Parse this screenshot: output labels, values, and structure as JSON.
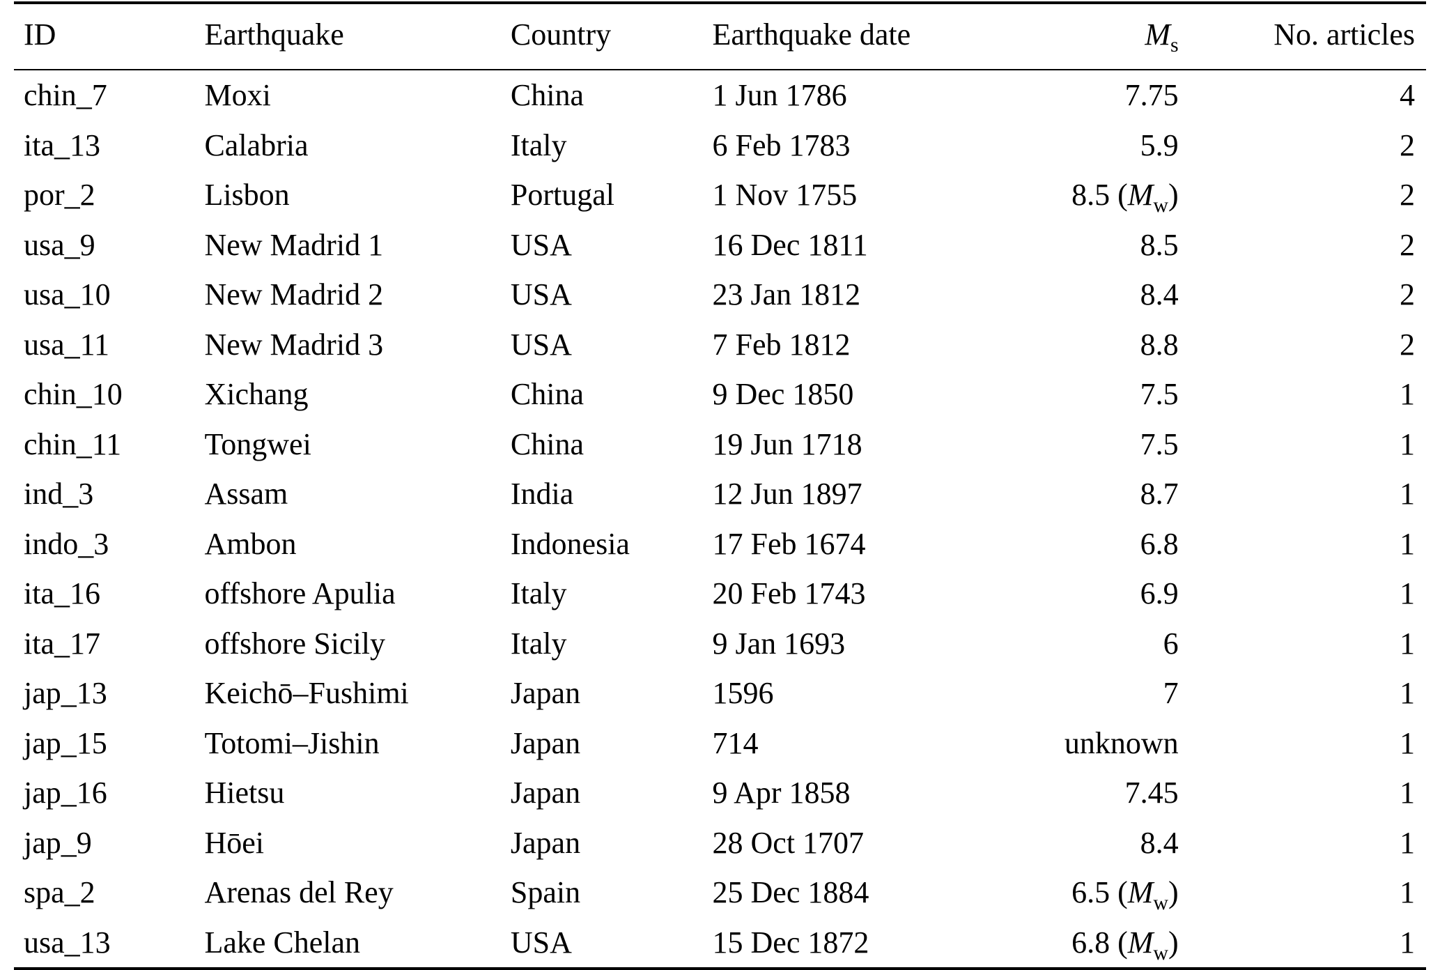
{
  "page": {
    "background_color": "#ffffff",
    "text_color": "#000000",
    "rule_color": "#000000"
  },
  "table": {
    "columns": [
      {
        "id": "id",
        "label": "ID",
        "align": "left"
      },
      {
        "id": "earthquake",
        "label": "Earthquake",
        "align": "left"
      },
      {
        "id": "country",
        "label": "Country",
        "align": "left"
      },
      {
        "id": "date",
        "label": "Earthquake date",
        "align": "left"
      },
      {
        "id": "magnitude",
        "label_base": "M",
        "label_sub": "s",
        "align": "right"
      },
      {
        "id": "articles",
        "label": "No. articles",
        "align": "right"
      }
    ],
    "rows": [
      {
        "id": "chin_7",
        "earthquake": "Moxi",
        "country": "China",
        "date": "1 Jun 1786",
        "magnitude": "7.75",
        "articles": "4"
      },
      {
        "id": "ita_13",
        "earthquake": "Calabria",
        "country": "Italy",
        "date": "6 Feb 1783",
        "magnitude": "5.9",
        "articles": "2"
      },
      {
        "id": "por_2",
        "earthquake": "Lisbon",
        "country": "Portugal",
        "date": "1 Nov 1755",
        "magnitude": "8.5 (Mw)",
        "articles": "2"
      },
      {
        "id": "usa_9",
        "earthquake": "New Madrid 1",
        "country": "USA",
        "date": "16 Dec 1811",
        "magnitude": "8.5",
        "articles": "2"
      },
      {
        "id": "usa_10",
        "earthquake": "New Madrid 2",
        "country": "USA",
        "date": "23 Jan 1812",
        "magnitude": "8.4",
        "articles": "2"
      },
      {
        "id": "usa_11",
        "earthquake": "New Madrid 3",
        "country": "USA",
        "date": "7 Feb 1812",
        "magnitude": "8.8",
        "articles": "2"
      },
      {
        "id": "chin_10",
        "earthquake": "Xichang",
        "country": "China",
        "date": "9 Dec 1850",
        "magnitude": "7.5",
        "articles": "1"
      },
      {
        "id": "chin_11",
        "earthquake": "Tongwei",
        "country": "China",
        "date": "19 Jun 1718",
        "magnitude": "7.5",
        "articles": "1"
      },
      {
        "id": "ind_3",
        "earthquake": "Assam",
        "country": "India",
        "date": "12 Jun 1897",
        "magnitude": "8.7",
        "articles": "1"
      },
      {
        "id": "indo_3",
        "earthquake": "Ambon",
        "country": "Indonesia",
        "date": "17 Feb 1674",
        "magnitude": "6.8",
        "articles": "1"
      },
      {
        "id": "ita_16",
        "earthquake": "offshore Apulia",
        "country": "Italy",
        "date": "20 Feb 1743",
        "magnitude": "6.9",
        "articles": "1"
      },
      {
        "id": "ita_17",
        "earthquake": "offshore Sicily",
        "country": "Italy",
        "date": "9 Jan 1693",
        "magnitude": "6",
        "articles": "1"
      },
      {
        "id": "jap_13",
        "earthquake": "Keichō–Fushimi",
        "country": "Japan",
        "date": "1596",
        "magnitude": "7",
        "articles": "1"
      },
      {
        "id": "jap_15",
        "earthquake": "Totomi–Jishin",
        "country": "Japan",
        "date": "714",
        "magnitude": "unknown",
        "articles": "1"
      },
      {
        "id": "jap_16",
        "earthquake": "Hietsu",
        "country": "Japan",
        "date": "9 Apr 1858",
        "magnitude": "7.45",
        "articles": "1"
      },
      {
        "id": "jap_9",
        "earthquake": "Hōei",
        "country": "Japan",
        "date": "28 Oct 1707",
        "magnitude": "8.4",
        "articles": "1"
      },
      {
        "id": "spa_2",
        "earthquake": "Arenas del Rey",
        "country": "Spain",
        "date": "25 Dec 1884",
        "magnitude": "6.5 (Mw)",
        "articles": "1"
      },
      {
        "id": "usa_13",
        "earthquake": "Lake Chelan",
        "country": "USA",
        "date": "15 Dec 1872",
        "magnitude": "6.8 (Mw)",
        "articles": "1"
      }
    ]
  }
}
